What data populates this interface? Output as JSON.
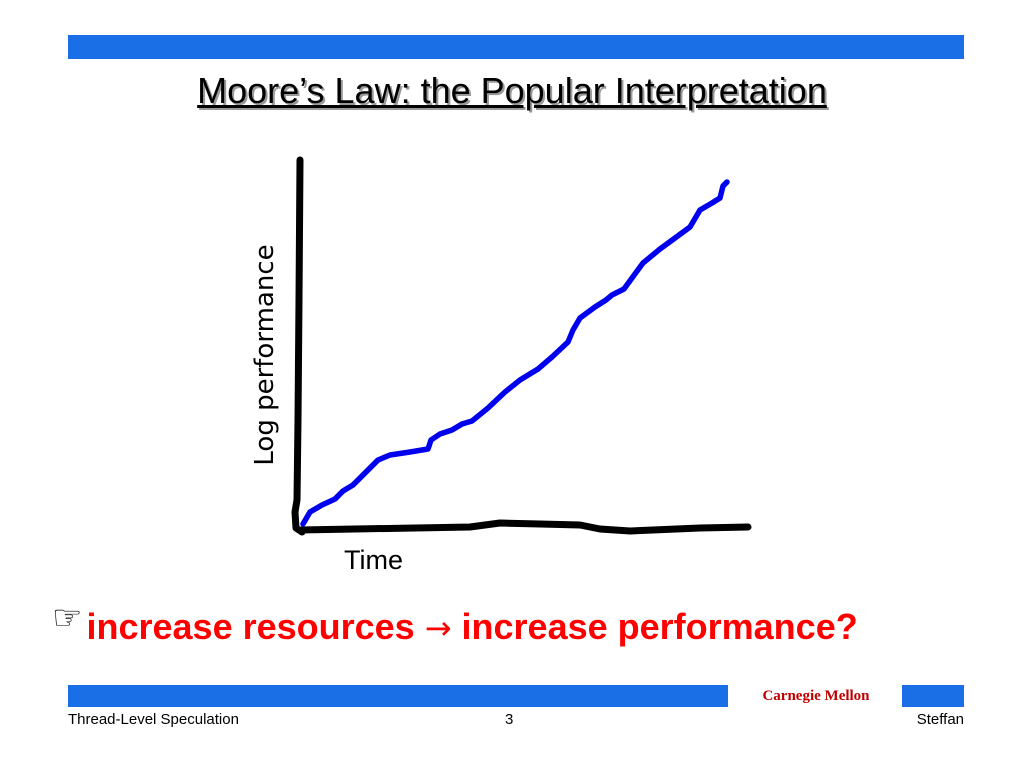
{
  "title": "Moore’s Law: the Popular Interpretation",
  "chart": {
    "ylabel": "Log performance",
    "xlabel": "Time",
    "colors": {
      "axes": "#000000",
      "performance_curve": "#0000ee",
      "resources_curve": "#000000"
    }
  },
  "bullet": {
    "icon": "pointing-hand-icon",
    "icon_glyph": "☞",
    "text_before": "increase resources ",
    "arrow": "→",
    "text_after": " increase performance?",
    "color": "#ff0000"
  },
  "footer": {
    "left": "Thread-Level Speculation",
    "page": "3",
    "right": "Steffan",
    "institution": "Carnegie Mellon",
    "institution_color": "#c00000",
    "bar_color": "#1a6fe6"
  }
}
